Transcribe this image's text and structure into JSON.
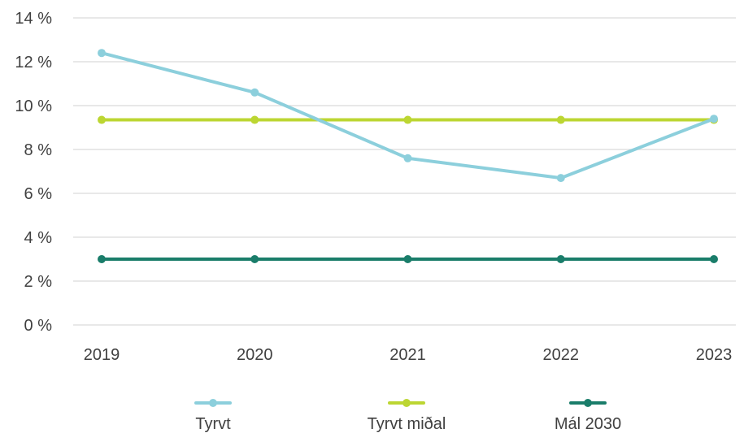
{
  "chart_data": {
    "type": "line",
    "categories": [
      "2019",
      "2020",
      "2021",
      "2022",
      "2023"
    ],
    "series": [
      {
        "name": "Tyrvt",
        "color": "#8ccfdc",
        "values": [
          12.4,
          10.6,
          7.6,
          6.7,
          9.4
        ]
      },
      {
        "name": "Tyrvt miðal",
        "color": "#bcd632",
        "values": [
          9.35,
          9.35,
          9.35,
          9.35,
          9.35
        ]
      },
      {
        "name": "Mál 2030",
        "color": "#1a7d6a",
        "values": [
          3.0,
          3.0,
          3.0,
          3.0,
          3.0
        ]
      }
    ],
    "ylim": [
      0,
      14
    ],
    "yticks": [
      {
        "value": 0,
        "label": "0 %"
      },
      {
        "value": 2,
        "label": "2 %"
      },
      {
        "value": 4,
        "label": "4 %"
      },
      {
        "value": 6,
        "label": "6 %"
      },
      {
        "value": 8,
        "label": "8 %"
      },
      {
        "value": 10,
        "label": "10 %"
      },
      {
        "value": 12,
        "label": "12 %"
      },
      {
        "value": 14,
        "label": "14 %"
      }
    ],
    "grid": true,
    "legend_position": "bottom",
    "title": "",
    "xlabel": "",
    "ylabel": ""
  }
}
